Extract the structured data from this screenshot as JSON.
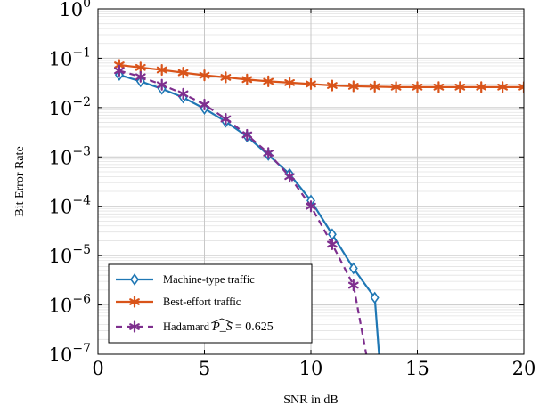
{
  "chart_data": {
    "type": "line",
    "xlabel": "SNR in dB",
    "ylabel": "Bit Error Rate",
    "xlim": [
      0,
      20
    ],
    "ylim": [
      1e-07,
      1
    ],
    "yscale": "log",
    "grid": true,
    "legend_position": "bottom-left",
    "x_ticks": [
      0,
      5,
      10,
      15,
      20
    ],
    "y_ticks": [
      {
        "base": "10",
        "exp": "0",
        "value": 1
      },
      {
        "base": "10",
        "exp": "−1",
        "value": 0.1
      },
      {
        "base": "10",
        "exp": "−2",
        "value": 0.01
      },
      {
        "base": "10",
        "exp": "−3",
        "value": 0.001
      },
      {
        "base": "10",
        "exp": "−4",
        "value": 0.0001
      },
      {
        "base": "10",
        "exp": "−5",
        "value": 1e-05
      },
      {
        "base": "10",
        "exp": "−6",
        "value": 1e-06
      },
      {
        "base": "10",
        "exp": "−7",
        "value": 1e-07
      }
    ],
    "series": [
      {
        "name": "Machine-type traffic",
        "color": "#1f77b4",
        "marker": "diamond",
        "dash": "solid",
        "x": [
          1,
          2,
          3,
          4,
          5,
          6,
          7,
          8,
          9,
          10,
          11,
          12,
          13,
          13.2
        ],
        "y": [
          0.046,
          0.034,
          0.024,
          0.016,
          0.0095,
          0.0052,
          0.0026,
          0.0011,
          0.00045,
          0.00013,
          2.7e-05,
          5.5e-06,
          1.4e-06,
          1e-07
        ],
        "marker_count": 13
      },
      {
        "name": "Best-effort traffic",
        "color": "#d9541a",
        "marker": "asterisk",
        "dash": "solid",
        "x": [
          1,
          2,
          3,
          4,
          5,
          6,
          7,
          8,
          9,
          10,
          11,
          12,
          13,
          14,
          15,
          16,
          17,
          18,
          19,
          20
        ],
        "y": [
          0.073,
          0.065,
          0.058,
          0.051,
          0.045,
          0.041,
          0.037,
          0.034,
          0.032,
          0.03,
          0.028,
          0.027,
          0.0265,
          0.026,
          0.026,
          0.026,
          0.026,
          0.026,
          0.026,
          0.026
        ]
      },
      {
        "name": "Hadamard",
        "name_math": "P_S",
        "name_value": "= 0.625",
        "color": "#7e2f8e",
        "marker": "asterisk",
        "dash": "dashed",
        "x": [
          1,
          2,
          3,
          4,
          5,
          6,
          7,
          8,
          9,
          10,
          11,
          12,
          12.6
        ],
        "y": [
          0.056,
          0.042,
          0.029,
          0.019,
          0.0115,
          0.0059,
          0.0028,
          0.0012,
          0.0004,
          0.0001,
          1.7e-05,
          2.5e-06,
          1e-07
        ],
        "marker_count": 12
      }
    ]
  }
}
